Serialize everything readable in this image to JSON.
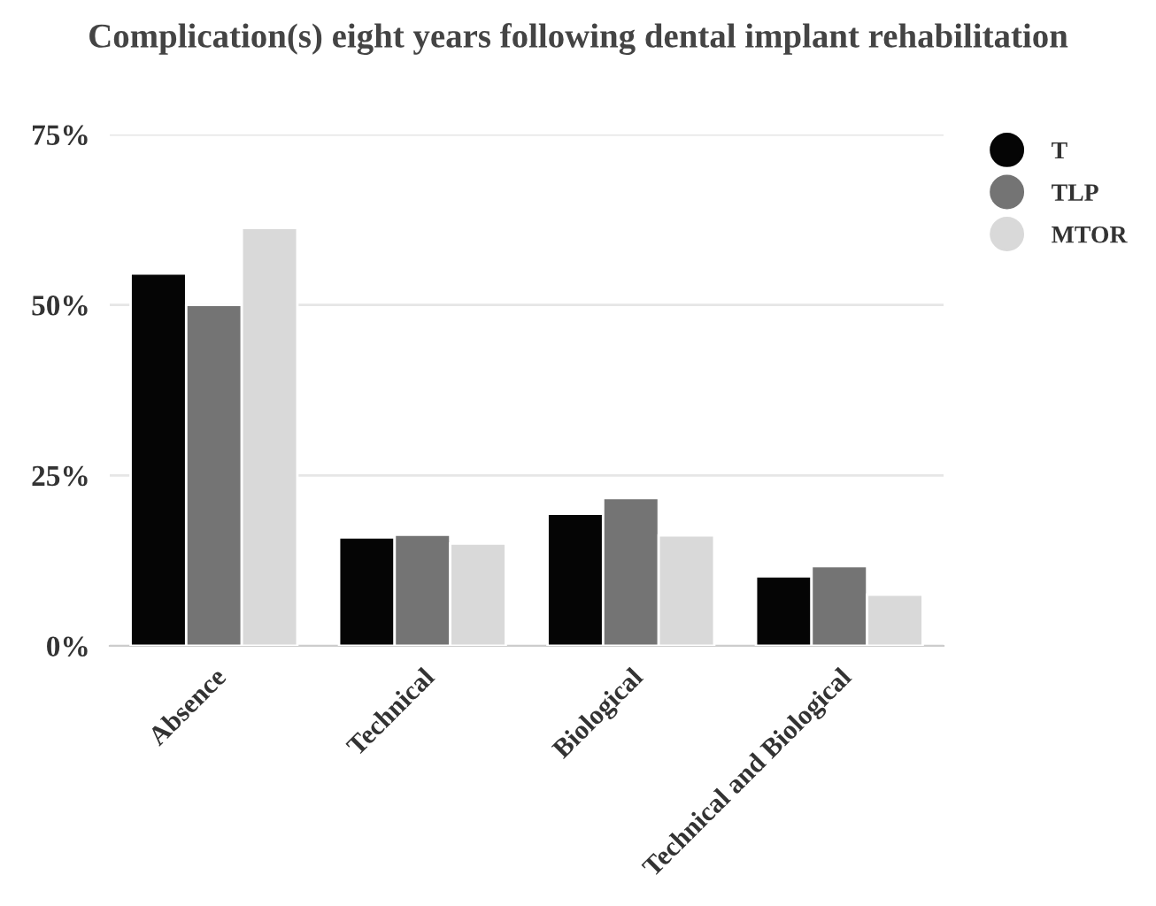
{
  "chart_data": {
    "type": "bar",
    "title": "Complication(s) eight years following dental implant rehabilitation",
    "categories": [
      "Absence",
      "Technical",
      "Biological",
      "Technical and Biological"
    ],
    "series": [
      {
        "name": "T",
        "color": "#050505",
        "values": [
          54.6,
          15.9,
          19.4,
          10.2
        ]
      },
      {
        "name": "TLP",
        "color": "#747474",
        "values": [
          50.0,
          16.3,
          21.7,
          11.7
        ]
      },
      {
        "name": "MTOR",
        "color": "#d9d9d9",
        "values": [
          61.3,
          15.0,
          16.2,
          7.5
        ]
      }
    ],
    "ylim": [
      0,
      75
    ],
    "yticks": [
      {
        "value": 0,
        "label": "0%"
      },
      {
        "value": 25,
        "label": "25%"
      },
      {
        "value": 50,
        "label": "50%"
      },
      {
        "value": 75,
        "label": "75%"
      }
    ],
    "grid": "y",
    "legend": "top right"
  }
}
